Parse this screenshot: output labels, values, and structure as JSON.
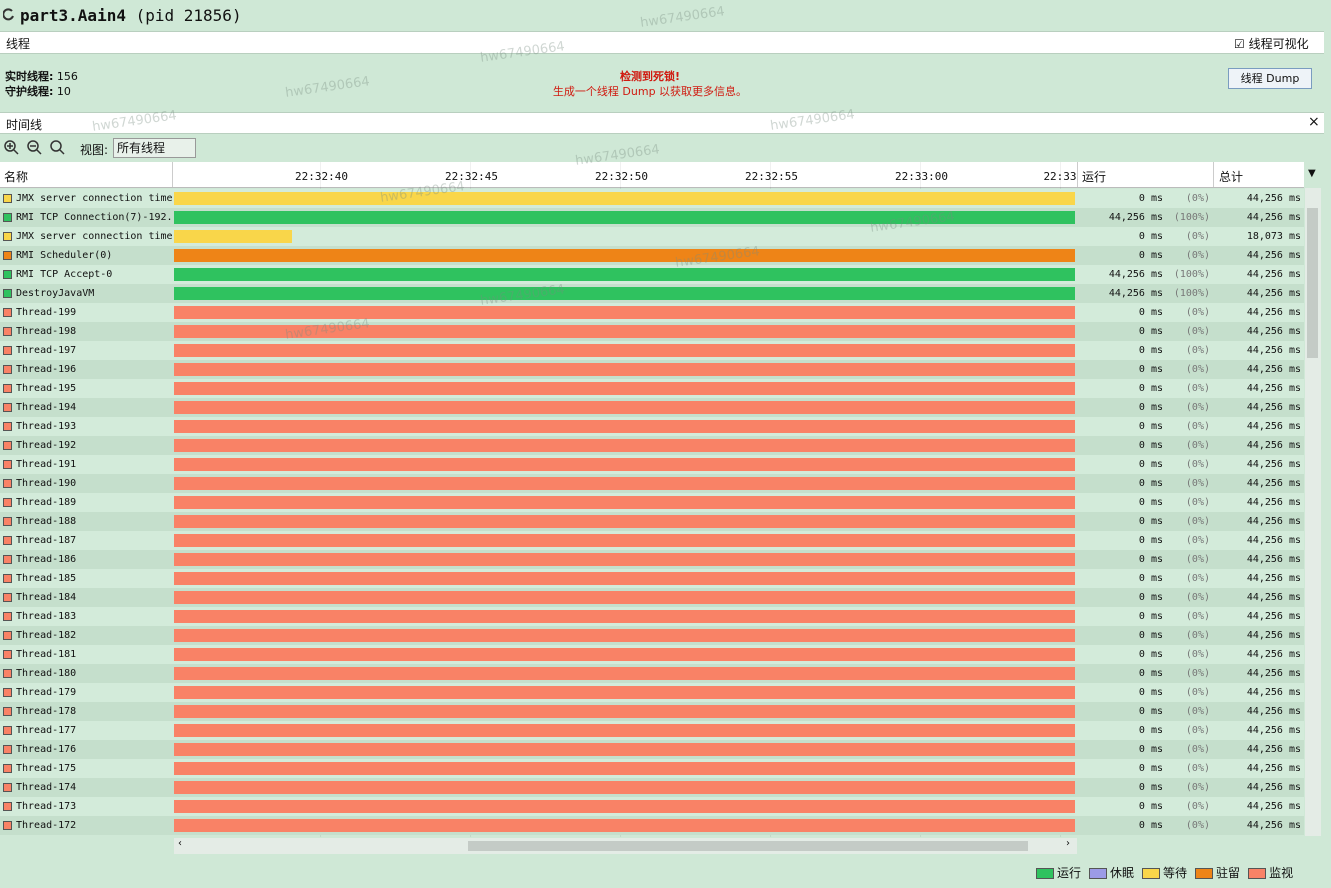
{
  "window": {
    "title": "part3.Aain4",
    "pid": "(pid 21856)"
  },
  "threads_panel": {
    "title": "线程",
    "visualize_checkbox": "线程可视化",
    "live_threads_label": "实时线程:",
    "live_threads": "156",
    "daemon_threads_label": "守护线程:",
    "daemon_threads": "10",
    "deadlock_alert": "检测到死锁!",
    "deadlock_hint": "生成一个线程 Dump 以获取更多信息。",
    "dump_button": "线程 Dump"
  },
  "timeline": {
    "title": "时间线",
    "view_label": "视图:",
    "view_select": "所有线程",
    "columns": {
      "name": "名称",
      "running": "运行",
      "total": "总计"
    },
    "time_ticks": [
      "22:32:40",
      "22:32:45",
      "22:32:50",
      "22:32:55",
      "22:33:00",
      "22:33"
    ],
    "rows": [
      {
        "name": "JMX server connection time",
        "state": "等待",
        "running": "0 ms",
        "percent": "(0%)",
        "total": "44,256 ms"
      },
      {
        "name": "RMI TCP Connection(7)-192.",
        "state": "运行",
        "running": "44,256 ms",
        "percent": "(100%)",
        "total": "44,256 ms"
      },
      {
        "name": "JMX server connection time",
        "state": "等待",
        "running": "0 ms",
        "percent": "(0%)",
        "total": "18,073 ms"
      },
      {
        "name": "RMI Scheduler(0)",
        "state": "驻留",
        "running": "0 ms",
        "percent": "(0%)",
        "total": "44,256 ms"
      },
      {
        "name": "RMI TCP Accept-0",
        "state": "运行",
        "running": "44,256 ms",
        "percent": "(100%)",
        "total": "44,256 ms"
      },
      {
        "name": "DestroyJavaVM",
        "state": "运行",
        "running": "44,256 ms",
        "percent": "(100%)",
        "total": "44,256 ms"
      },
      {
        "name": "Thread-199",
        "state": "监视",
        "running": "0 ms",
        "percent": "(0%)",
        "total": "44,256 ms"
      },
      {
        "name": "Thread-198",
        "state": "监视",
        "running": "0 ms",
        "percent": "(0%)",
        "total": "44,256 ms"
      },
      {
        "name": "Thread-197",
        "state": "监视",
        "running": "0 ms",
        "percent": "(0%)",
        "total": "44,256 ms"
      },
      {
        "name": "Thread-196",
        "state": "监视",
        "running": "0 ms",
        "percent": "(0%)",
        "total": "44,256 ms"
      },
      {
        "name": "Thread-195",
        "state": "监视",
        "running": "0 ms",
        "percent": "(0%)",
        "total": "44,256 ms"
      },
      {
        "name": "Thread-194",
        "state": "监视",
        "running": "0 ms",
        "percent": "(0%)",
        "total": "44,256 ms"
      },
      {
        "name": "Thread-193",
        "state": "监视",
        "running": "0 ms",
        "percent": "(0%)",
        "total": "44,256 ms"
      },
      {
        "name": "Thread-192",
        "state": "监视",
        "running": "0 ms",
        "percent": "(0%)",
        "total": "44,256 ms"
      },
      {
        "name": "Thread-191",
        "state": "监视",
        "running": "0 ms",
        "percent": "(0%)",
        "total": "44,256 ms"
      },
      {
        "name": "Thread-190",
        "state": "监视",
        "running": "0 ms",
        "percent": "(0%)",
        "total": "44,256 ms"
      },
      {
        "name": "Thread-189",
        "state": "监视",
        "running": "0 ms",
        "percent": "(0%)",
        "total": "44,256 ms"
      },
      {
        "name": "Thread-188",
        "state": "监视",
        "running": "0 ms",
        "percent": "(0%)",
        "total": "44,256 ms"
      },
      {
        "name": "Thread-187",
        "state": "监视",
        "running": "0 ms",
        "percent": "(0%)",
        "total": "44,256 ms"
      },
      {
        "name": "Thread-186",
        "state": "监视",
        "running": "0 ms",
        "percent": "(0%)",
        "total": "44,256 ms"
      },
      {
        "name": "Thread-185",
        "state": "监视",
        "running": "0 ms",
        "percent": "(0%)",
        "total": "44,256 ms"
      },
      {
        "name": "Thread-184",
        "state": "监视",
        "running": "0 ms",
        "percent": "(0%)",
        "total": "44,256 ms"
      },
      {
        "name": "Thread-183",
        "state": "监视",
        "running": "0 ms",
        "percent": "(0%)",
        "total": "44,256 ms"
      },
      {
        "name": "Thread-182",
        "state": "监视",
        "running": "0 ms",
        "percent": "(0%)",
        "total": "44,256 ms"
      },
      {
        "name": "Thread-181",
        "state": "监视",
        "running": "0 ms",
        "percent": "(0%)",
        "total": "44,256 ms"
      },
      {
        "name": "Thread-180",
        "state": "监视",
        "running": "0 ms",
        "percent": "(0%)",
        "total": "44,256 ms"
      },
      {
        "name": "Thread-179",
        "state": "监视",
        "running": "0 ms",
        "percent": "(0%)",
        "total": "44,256 ms"
      },
      {
        "name": "Thread-178",
        "state": "监视",
        "running": "0 ms",
        "percent": "(0%)",
        "total": "44,256 ms"
      },
      {
        "name": "Thread-177",
        "state": "监视",
        "running": "0 ms",
        "percent": "(0%)",
        "total": "44,256 ms"
      },
      {
        "name": "Thread-176",
        "state": "监视",
        "running": "0 ms",
        "percent": "(0%)",
        "total": "44,256 ms"
      },
      {
        "name": "Thread-175",
        "state": "监视",
        "running": "0 ms",
        "percent": "(0%)",
        "total": "44,256 ms"
      },
      {
        "name": "Thread-174",
        "state": "监视",
        "running": "0 ms",
        "percent": "(0%)",
        "total": "44,256 ms"
      },
      {
        "name": "Thread-173",
        "state": "监视",
        "running": "0 ms",
        "percent": "(0%)",
        "total": "44,256 ms"
      },
      {
        "name": "Thread-172",
        "state": "监视",
        "running": "0 ms",
        "percent": "(0%)",
        "total": "44,256 ms"
      }
    ]
  },
  "legend": [
    {
      "label": "运行",
      "color": "#2fc25f"
    },
    {
      "label": "休眠",
      "color": "#9c9be6"
    },
    {
      "label": "等待",
      "color": "#f9d64a"
    },
    {
      "label": "驻留",
      "color": "#ee8417"
    },
    {
      "label": "监视",
      "color": "#f98266"
    }
  ],
  "watermark": "hw67490664"
}
